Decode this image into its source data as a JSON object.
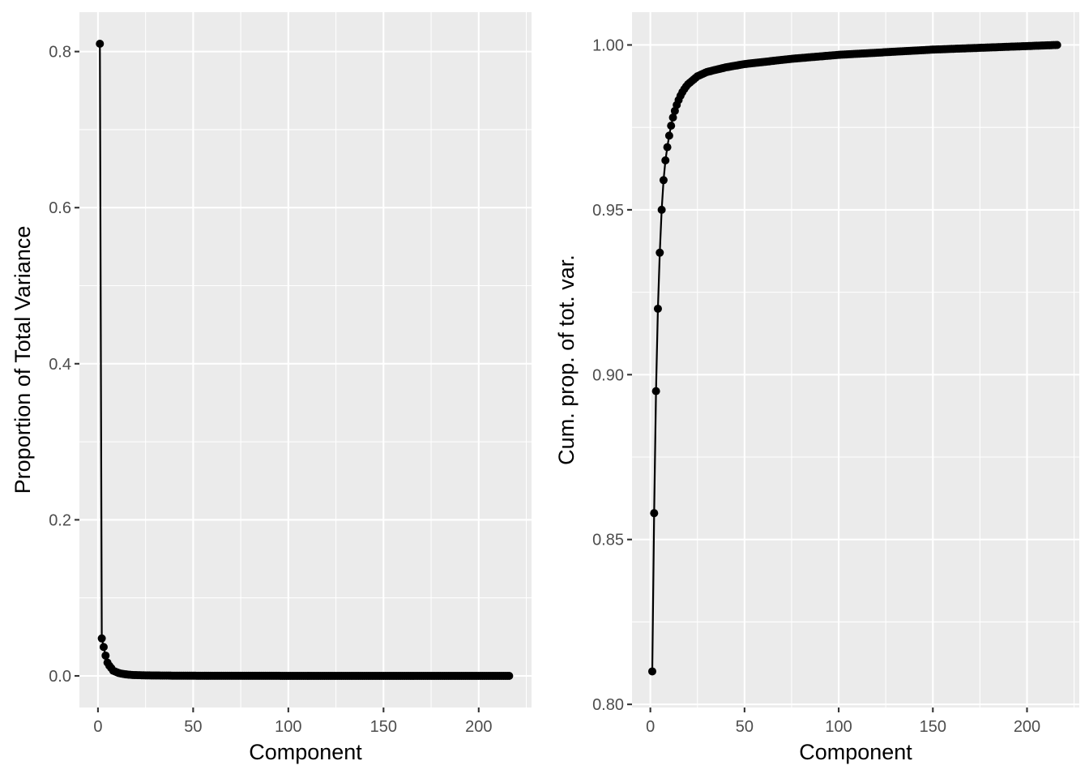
{
  "chart_data": [
    {
      "type": "line",
      "xlabel": "Component",
      "ylabel": "Proportion of Total Variance",
      "xlim": [
        -9.75,
        227.75
      ],
      "ylim": [
        -0.0405,
        0.8505
      ],
      "x_ticks": [
        0,
        50,
        100,
        150,
        200
      ],
      "x_tick_labels": [
        "0",
        "50",
        "100",
        "150",
        "200"
      ],
      "y_ticks": [
        0.0,
        0.2,
        0.4,
        0.6,
        0.8
      ],
      "y_tick_labels": [
        "0.0",
        "0.2",
        "0.4",
        "0.6",
        "0.8"
      ],
      "grid": true,
      "n_components": 216,
      "x": [
        1,
        2,
        3,
        4,
        5,
        6,
        7,
        8,
        9,
        10,
        11,
        12,
        13,
        14,
        15,
        16,
        17,
        18,
        19,
        20,
        25,
        30,
        40,
        50,
        75,
        100,
        150,
        216
      ],
      "y": [
        0.81,
        0.048,
        0.037,
        0.026,
        0.017,
        0.013,
        0.01,
        0.0066,
        0.0056,
        0.0046,
        0.0036,
        0.003,
        0.0026,
        0.0022,
        0.0019,
        0.0016,
        0.0014,
        0.0012,
        0.0011,
        0.001,
        0.0007,
        0.0005,
        0.0003,
        0.0002,
        0.0001,
        6e-05,
        3e-05,
        1e-05
      ],
      "series_color": "#000000",
      "panel_color": "#ebebeb"
    },
    {
      "type": "line",
      "xlabel": "Component",
      "ylabel": "Cum. prop. of tot. var.",
      "xlim": [
        -9.75,
        227.75
      ],
      "ylim": [
        0.79905,
        1.00995
      ],
      "x_ticks": [
        0,
        50,
        100,
        150,
        200
      ],
      "x_tick_labels": [
        "0",
        "50",
        "100",
        "150",
        "200"
      ],
      "y_ticks": [
        0.8,
        0.85,
        0.9,
        0.95,
        1.0
      ],
      "y_tick_labels": [
        "0.80",
        "0.85",
        "0.90",
        "0.95",
        "1.00"
      ],
      "grid": true,
      "n_components": 216,
      "x": [
        1,
        2,
        3,
        4,
        5,
        6,
        7,
        8,
        9,
        10,
        11,
        12,
        13,
        14,
        15,
        16,
        17,
        18,
        19,
        20,
        25,
        30,
        40,
        50,
        75,
        100,
        150,
        216
      ],
      "y": [
        0.81,
        0.858,
        0.895,
        0.92,
        0.937,
        0.95,
        0.959,
        0.965,
        0.969,
        0.9725,
        0.9755,
        0.978,
        0.98,
        0.9818,
        0.9833,
        0.9846,
        0.9857,
        0.9866,
        0.9874,
        0.9881,
        0.9905,
        0.9918,
        0.9932,
        0.9942,
        0.9958,
        0.997,
        0.9986,
        1.0
      ],
      "series_color": "#000000",
      "panel_color": "#ebebeb"
    }
  ]
}
